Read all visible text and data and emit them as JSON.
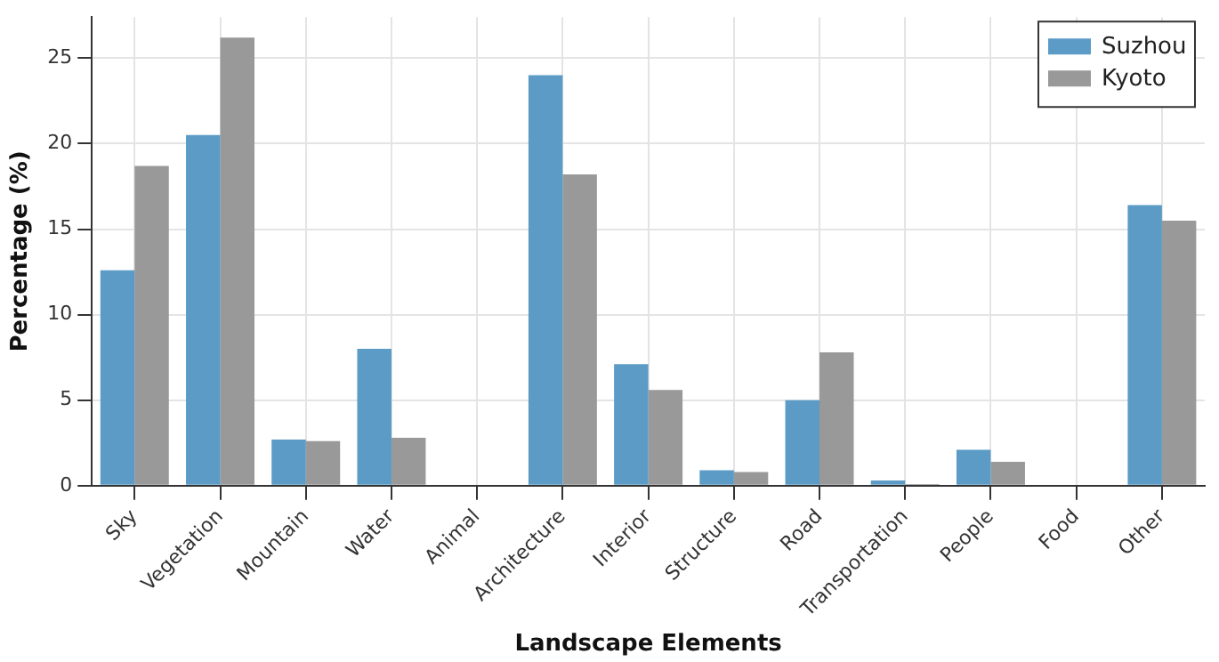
{
  "chart_data": {
    "type": "bar",
    "xlabel": "Landscape Elements",
    "ylabel": "Percentage (%)",
    "categories": [
      "Sky",
      "Vegetation",
      "Mountain",
      "Water",
      "Animal",
      "Architecture",
      "Interior",
      "Structure",
      "Road",
      "Transportation",
      "People",
      "Food",
      "Other"
    ],
    "series": [
      {
        "name": "Suzhou",
        "color": "#5b9bc6",
        "values": [
          12.6,
          20.5,
          2.7,
          8.0,
          0,
          24.0,
          7.1,
          0.9,
          5.0,
          0.3,
          2.1,
          0,
          16.4
        ]
      },
      {
        "name": "Kyoto",
        "color": "#999999",
        "values": [
          18.7,
          26.2,
          2.6,
          2.8,
          0,
          18.2,
          5.6,
          0.8,
          7.8,
          0.1,
          1.4,
          0,
          15.5
        ]
      }
    ],
    "ylim": [
      0,
      27.4
    ],
    "yticks": [
      0,
      5,
      10,
      15,
      20,
      25
    ],
    "grid": true,
    "legend": "top right"
  }
}
